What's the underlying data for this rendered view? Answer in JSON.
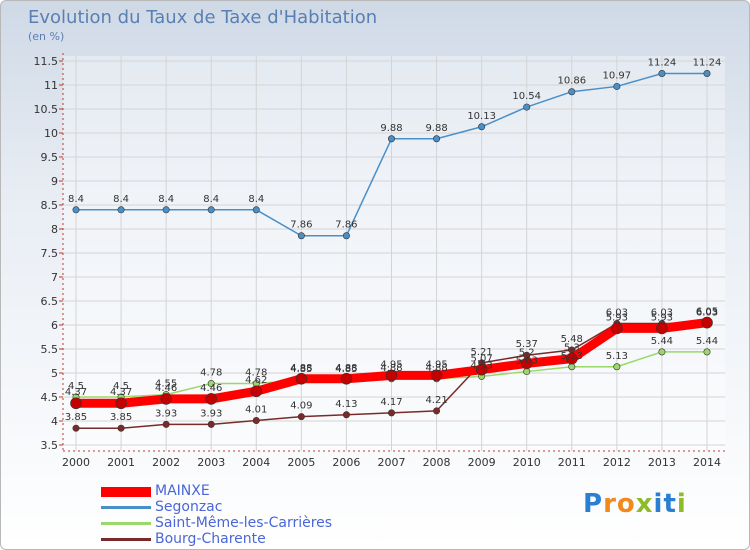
{
  "title": "Evolution du Taux de Taxe d'Habitation",
  "unit": "(en %)",
  "logo": {
    "letters": [
      "P",
      "r",
      "o",
      "x",
      "i",
      "t",
      "i"
    ],
    "colors": [
      "#2a7fd4",
      "#f08a1e",
      "#f08a1e",
      "#8bbd2a",
      "#2a7fd4",
      "#2a7fd4",
      "#8bbd2a"
    ]
  },
  "chart_data": {
    "type": "line",
    "title": "Evolution du Taux de Taxe d'Habitation",
    "ylabel": "(en %)",
    "xlabel": "",
    "categories": [
      "2000",
      "2001",
      "2002",
      "2003",
      "2004",
      "2005",
      "2006",
      "2007",
      "2008",
      "2009",
      "2010",
      "2011",
      "2012",
      "2013",
      "2014"
    ],
    "ylim": [
      3.5,
      11.5
    ],
    "yticks": [
      "3.5",
      "4",
      "4.5",
      "5",
      "5.5",
      "6",
      "6.5",
      "7",
      "7.5",
      "8",
      "8.5",
      "9",
      "9.5",
      "10",
      "10.5",
      "11",
      "11.5"
    ],
    "grid": true,
    "legend": "bottom-left",
    "series": [
      {
        "name": "MAINXE",
        "color": "#ff0000",
        "values": [
          4.37,
          4.37,
          4.46,
          4.46,
          4.62,
          4.88,
          4.88,
          4.95,
          4.95,
          5.07,
          5.2,
          5.3,
          5.93,
          5.93,
          6.05
        ],
        "labels": [
          "4.37",
          "4.37",
          "4.46",
          "4.46",
          "4.62",
          "4.88",
          "4.88",
          "4.95",
          "4.95",
          "5.07",
          "5.2",
          "5.3",
          "5.93",
          "5.93",
          "6.05"
        ]
      },
      {
        "name": "Segonzac",
        "color": "#4a90c8",
        "values": [
          8.4,
          8.4,
          8.4,
          8.4,
          8.4,
          7.86,
          7.86,
          9.88,
          9.88,
          10.13,
          10.54,
          10.86,
          10.97,
          11.24,
          11.24
        ],
        "labels": [
          "8.4",
          "8.4",
          "8.4",
          "8.4",
          "8.4",
          "7.86",
          "7.86",
          "9.88",
          "9.88",
          "10.13",
          "10.54",
          "10.86",
          "10.97",
          "11.24",
          "11.24"
        ]
      },
      {
        "name": "Saint-Même-les-Carrières",
        "color": "#9ad86a",
        "values": [
          4.5,
          4.5,
          4.55,
          4.78,
          4.78,
          4.85,
          4.85,
          4.88,
          4.88,
          4.93,
          5.03,
          5.13,
          5.13,
          5.44,
          5.44
        ],
        "labels": [
          "4.5",
          "4.5",
          "4.55",
          "4.78",
          "4.78",
          "4.85",
          "4.85",
          "4.88",
          "4.88",
          "4.93",
          "5.03",
          "5.13",
          "5.13",
          "5.44",
          "5.44"
        ]
      },
      {
        "name": "Bourg-Charente",
        "color": "#7a2a2a",
        "values": [
          3.85,
          3.85,
          3.93,
          3.93,
          4.01,
          4.09,
          4.13,
          4.17,
          4.21,
          5.21,
          5.37,
          5.48,
          6.03,
          6.03,
          6.03
        ],
        "labels": [
          "3.85",
          "3.85",
          "3.93",
          "3.93",
          "4.01",
          "4.09",
          "4.13",
          "4.17",
          "4.21",
          "5.21",
          "5.37",
          "5.48",
          "6.03",
          "6.03",
          "6.03"
        ]
      }
    ]
  }
}
